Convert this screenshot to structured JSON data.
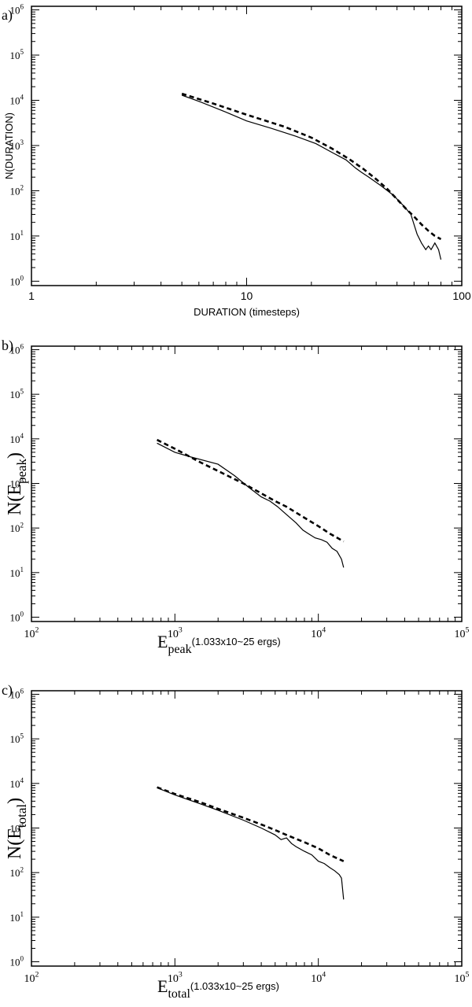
{
  "chart_data": [
    {
      "type": "line",
      "panel_label": "a)",
      "xscale": "log",
      "yscale": "log",
      "xlim": [
        1,
        100
      ],
      "ylim": [
        0.8,
        1200000
      ],
      "xticks": [
        "1",
        "10",
        "100"
      ],
      "xtick_values": [
        1,
        10,
        100
      ],
      "yticks": [
        "10^0",
        "10^1",
        "10^2",
        "10^3",
        "10^4",
        "10^5",
        "10^6"
      ],
      "xlabel": "DURATION (timesteps)",
      "ylabel": "N(DURATION)",
      "series": [
        {
          "style": "solid",
          "points": [
            [
              5,
              13000
            ],
            [
              6,
              9500
            ],
            [
              8,
              5500
            ],
            [
              10,
              3500
            ],
            [
              13,
              2400
            ],
            [
              17,
              1600
            ],
            [
              21,
              1100
            ],
            [
              25,
              700
            ],
            [
              29,
              480
            ],
            [
              32,
              320
            ],
            [
              34,
              260
            ],
            [
              37,
              200
            ],
            [
              42,
              130
            ],
            [
              48,
              80
            ],
            [
              54,
              45
            ],
            [
              58,
              30
            ],
            [
              60,
              18
            ],
            [
              62,
              11
            ],
            [
              65,
              7
            ],
            [
              68,
              5
            ],
            [
              70,
              6
            ],
            [
              72,
              5
            ],
            [
              75,
              7
            ],
            [
              78,
              5
            ],
            [
              80,
              3
            ]
          ]
        },
        {
          "style": "dashed",
          "points": [
            [
              5,
              14000
            ],
            [
              7,
              8500
            ],
            [
              10,
              4800
            ],
            [
              15,
              2600
            ],
            [
              20,
              1500
            ],
            [
              25,
              850
            ],
            [
              30,
              500
            ],
            [
              35,
              300
            ],
            [
              40,
              180
            ],
            [
              45,
              110
            ],
            [
              50,
              65
            ],
            [
              55,
              40
            ],
            [
              60,
              27
            ],
            [
              65,
              18
            ],
            [
              70,
              13
            ],
            [
              75,
              10
            ],
            [
              80,
              8.5
            ]
          ]
        }
      ]
    },
    {
      "type": "line",
      "panel_label": "b)",
      "xscale": "log",
      "yscale": "log",
      "xlim": [
        100,
        100000
      ],
      "ylim": [
        0.8,
        1200000
      ],
      "xticks": [
        "10^2",
        "10^3",
        "10^4",
        "10^5"
      ],
      "xtick_values": [
        100,
        1000,
        10000,
        100000
      ],
      "yticks": [
        "10^0",
        "10^1",
        "10^2",
        "10^3",
        "10^4",
        "10^5",
        "10^6"
      ],
      "xlabel": "E",
      "xlabel_sub": "peak",
      "xlabel_unit": "(1.033x10^25 ergs)",
      "ylabel": "N(E",
      "ylabel_sub": "peak",
      "ylabel_end": ")",
      "series": [
        {
          "style": "solid",
          "points": [
            [
              750,
              8000
            ],
            [
              1000,
              5000
            ],
            [
              1300,
              3900
            ],
            [
              2000,
              2700
            ],
            [
              2600,
              1500
            ],
            [
              3300,
              800
            ],
            [
              4000,
              500
            ],
            [
              4600,
              400
            ],
            [
              5200,
              300
            ],
            [
              6000,
              200
            ],
            [
              7000,
              130
            ],
            [
              7800,
              90
            ],
            [
              8500,
              75
            ],
            [
              9500,
              60
            ],
            [
              10500,
              55
            ],
            [
              11500,
              48
            ],
            [
              12500,
              35
            ],
            [
              13500,
              30
            ],
            [
              14500,
              20
            ],
            [
              15000,
              13
            ]
          ]
        },
        {
          "style": "dashed",
          "points": [
            [
              750,
              9500
            ],
            [
              1000,
              6000
            ],
            [
              1500,
              3000
            ],
            [
              2000,
              1900
            ],
            [
              3000,
              1000
            ],
            [
              4000,
              600
            ],
            [
              5000,
              400
            ],
            [
              6000,
              300
            ],
            [
              8000,
              170
            ],
            [
              10000,
              110
            ],
            [
              12000,
              75
            ],
            [
              15000,
              50
            ]
          ]
        }
      ]
    },
    {
      "type": "line",
      "panel_label": "c)",
      "xscale": "log",
      "yscale": "log",
      "xlim": [
        100,
        100000
      ],
      "ylim": [
        0.8,
        1200000
      ],
      "xticks": [
        "10^2",
        "10^3",
        "10^4",
        "10^5"
      ],
      "xtick_values": [
        100,
        1000,
        10000,
        100000
      ],
      "yticks": [
        "10^0",
        "10^1",
        "10^2",
        "10^3",
        "10^4",
        "10^5",
        "10^6"
      ],
      "xlabel": "E",
      "xlabel_sub": "total",
      "xlabel_unit": "(1.033x10^25 ergs)",
      "ylabel": "N(E",
      "ylabel_sub": "total",
      "ylabel_end": ")",
      "series": [
        {
          "style": "solid",
          "points": [
            [
              750,
              8000
            ],
            [
              1000,
              5500
            ],
            [
              1500,
              3500
            ],
            [
              2000,
              2500
            ],
            [
              3000,
              1500
            ],
            [
              4000,
              1000
            ],
            [
              5000,
              700
            ],
            [
              5500,
              550
            ],
            [
              6000,
              600
            ],
            [
              6500,
              450
            ],
            [
              7000,
              380
            ],
            [
              8000,
              300
            ],
            [
              9000,
              250
            ],
            [
              10000,
              180
            ],
            [
              11000,
              160
            ],
            [
              12000,
              130
            ],
            [
              13000,
              110
            ],
            [
              14000,
              90
            ],
            [
              14500,
              75
            ],
            [
              15000,
              25
            ]
          ]
        },
        {
          "style": "dashed",
          "points": [
            [
              750,
              8200
            ],
            [
              1000,
              5800
            ],
            [
              1500,
              3800
            ],
            [
              2000,
              2700
            ],
            [
              3000,
              1700
            ],
            [
              4000,
              1200
            ],
            [
              5000,
              900
            ],
            [
              6000,
              700
            ],
            [
              8000,
              480
            ],
            [
              10000,
              350
            ],
            [
              12000,
              250
            ],
            [
              15000,
              180
            ]
          ]
        }
      ]
    }
  ]
}
